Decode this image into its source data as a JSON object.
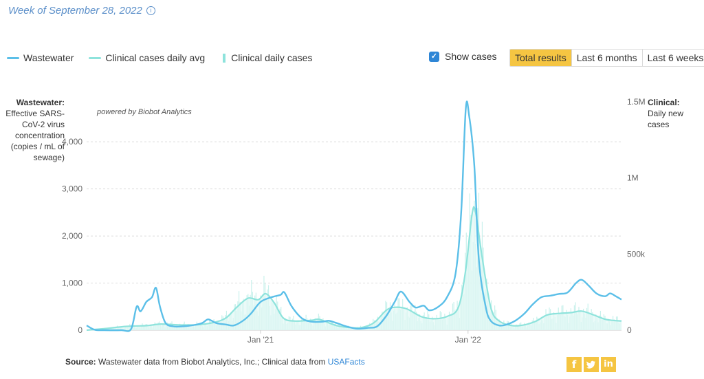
{
  "header": {
    "week_label": "Week of September 28, 2022",
    "info_icon": "info-circle-icon"
  },
  "legend": {
    "wastewater": "Wastewater",
    "clinical_avg": "Clinical cases daily avg",
    "clinical_daily": "Clinical daily cases"
  },
  "controls": {
    "show_cases_label": "Show cases",
    "show_cases_checked": true,
    "range_buttons": [
      "Total results",
      "Last 6 months",
      "Last 6 weeks"
    ],
    "active_range": "Total results"
  },
  "colors": {
    "wastewater": "#5bbfe8",
    "clinical": "#8ee3dc",
    "accent": "#f5c542",
    "link": "#2e86d6"
  },
  "chart_data": {
    "type": "line",
    "title": "",
    "watermark": "powered by Biobot Analytics",
    "left_axis": {
      "title_bold": "Wastewater:",
      "title_rest": "Effective SARS-CoV-2 virus concentration (copies / mL of sewage)",
      "ticks": [
        0,
        1000,
        2000,
        3000,
        4000
      ],
      "tick_labels": [
        "0",
        "1,000",
        "2,000",
        "3,000",
        "4,000"
      ],
      "range": [
        0,
        4850
      ]
    },
    "right_axis": {
      "title_bold": "Clinical:",
      "title_rest": "Daily new cases",
      "ticks": [
        0,
        500000,
        1000000,
        1500000
      ],
      "tick_labels": [
        "0",
        "500k",
        "1M",
        "1.5M"
      ],
      "range": [
        0,
        1500000
      ]
    },
    "x_axis": {
      "ticks": [
        "2021-01-01",
        "2022-01-01"
      ],
      "tick_labels": [
        "Jan '21",
        "Jan '22"
      ],
      "range": [
        "2020-03-01",
        "2022-09-28"
      ]
    },
    "series": [
      {
        "name": "Wastewater",
        "axis": "left",
        "points": [
          [
            "2020-03-01",
            100
          ],
          [
            "2020-03-15",
            10
          ],
          [
            "2020-04-01",
            0
          ],
          [
            "2020-05-01",
            0
          ],
          [
            "2020-05-18",
            20
          ],
          [
            "2020-05-28",
            500
          ],
          [
            "2020-06-04",
            400
          ],
          [
            "2020-06-14",
            600
          ],
          [
            "2020-06-24",
            700
          ],
          [
            "2020-07-01",
            900
          ],
          [
            "2020-07-08",
            500
          ],
          [
            "2020-07-18",
            150
          ],
          [
            "2020-08-01",
            80
          ],
          [
            "2020-08-15",
            80
          ],
          [
            "2020-09-01",
            100
          ],
          [
            "2020-09-20",
            150
          ],
          [
            "2020-10-01",
            230
          ],
          [
            "2020-10-15",
            150
          ],
          [
            "2020-11-01",
            120
          ],
          [
            "2020-11-15",
            100
          ],
          [
            "2020-12-01",
            200
          ],
          [
            "2020-12-15",
            350
          ],
          [
            "2021-01-01",
            600
          ],
          [
            "2021-01-20",
            700
          ],
          [
            "2021-02-05",
            750
          ],
          [
            "2021-02-12",
            800
          ],
          [
            "2021-02-25",
            500
          ],
          [
            "2021-03-15",
            250
          ],
          [
            "2021-04-01",
            180
          ],
          [
            "2021-04-20",
            180
          ],
          [
            "2021-05-01",
            200
          ],
          [
            "2021-05-15",
            150
          ],
          [
            "2021-06-01",
            80
          ],
          [
            "2021-06-20",
            30
          ],
          [
            "2021-07-10",
            50
          ],
          [
            "2021-07-25",
            80
          ],
          [
            "2021-08-10",
            300
          ],
          [
            "2021-08-25",
            600
          ],
          [
            "2021-09-05",
            820
          ],
          [
            "2021-09-20",
            600
          ],
          [
            "2021-10-01",
            480
          ],
          [
            "2021-10-15",
            520
          ],
          [
            "2021-10-25",
            420
          ],
          [
            "2021-11-10",
            500
          ],
          [
            "2021-11-25",
            700
          ],
          [
            "2021-12-10",
            1200
          ],
          [
            "2021-12-20",
            2500
          ],
          [
            "2021-12-28",
            4700
          ],
          [
            "2022-01-03",
            4550
          ],
          [
            "2022-01-12",
            3500
          ],
          [
            "2022-01-20",
            1500
          ],
          [
            "2022-02-01",
            500
          ],
          [
            "2022-02-10",
            200
          ],
          [
            "2022-02-25",
            100
          ],
          [
            "2022-03-10",
            120
          ],
          [
            "2022-03-25",
            200
          ],
          [
            "2022-04-10",
            350
          ],
          [
            "2022-04-25",
            550
          ],
          [
            "2022-05-10",
            700
          ],
          [
            "2022-05-25",
            730
          ],
          [
            "2022-06-10",
            770
          ],
          [
            "2022-06-25",
            800
          ],
          [
            "2022-07-10",
            1000
          ],
          [
            "2022-07-20",
            1070
          ],
          [
            "2022-08-01",
            950
          ],
          [
            "2022-08-15",
            780
          ],
          [
            "2022-08-30",
            720
          ],
          [
            "2022-09-08",
            780
          ],
          [
            "2022-09-18",
            720
          ],
          [
            "2022-09-28",
            650
          ]
        ]
      },
      {
        "name": "Clinical cases daily avg",
        "axis": "right",
        "points": [
          [
            "2020-03-01",
            0
          ],
          [
            "2020-04-01",
            10000
          ],
          [
            "2020-05-10",
            25000
          ],
          [
            "2020-06-15",
            30000
          ],
          [
            "2020-07-10",
            40000
          ],
          [
            "2020-08-10",
            35000
          ],
          [
            "2020-09-10",
            35000
          ],
          [
            "2020-10-10",
            50000
          ],
          [
            "2020-11-01",
            80000
          ],
          [
            "2020-11-20",
            150000
          ],
          [
            "2020-12-10",
            210000
          ],
          [
            "2020-12-28",
            200000
          ],
          [
            "2021-01-10",
            240000
          ],
          [
            "2021-01-25",
            180000
          ],
          [
            "2021-02-10",
            80000
          ],
          [
            "2021-03-01",
            60000
          ],
          [
            "2021-04-01",
            65000
          ],
          [
            "2021-04-15",
            70000
          ],
          [
            "2021-05-15",
            30000
          ],
          [
            "2021-06-15",
            15000
          ],
          [
            "2021-07-01",
            20000
          ],
          [
            "2021-07-20",
            50000
          ],
          [
            "2021-08-10",
            130000
          ],
          [
            "2021-08-25",
            150000
          ],
          [
            "2021-09-15",
            140000
          ],
          [
            "2021-10-10",
            90000
          ],
          [
            "2021-11-01",
            75000
          ],
          [
            "2021-11-25",
            90000
          ],
          [
            "2021-12-15",
            150000
          ],
          [
            "2021-12-28",
            400000
          ],
          [
            "2022-01-08",
            760000
          ],
          [
            "2022-01-14",
            780000
          ],
          [
            "2022-01-25",
            500000
          ],
          [
            "2022-02-10",
            150000
          ],
          [
            "2022-02-25",
            60000
          ],
          [
            "2022-03-20",
            30000
          ],
          [
            "2022-04-10",
            35000
          ],
          [
            "2022-05-01",
            60000
          ],
          [
            "2022-05-20",
            100000
          ],
          [
            "2022-06-10",
            110000
          ],
          [
            "2022-07-01",
            115000
          ],
          [
            "2022-07-20",
            125000
          ],
          [
            "2022-08-10",
            100000
          ],
          [
            "2022-09-01",
            70000
          ],
          [
            "2022-09-28",
            60000
          ]
        ]
      },
      {
        "name": "Clinical daily cases",
        "axis": "right",
        "style": "bars",
        "note": "daily bars follow the daily avg with noise"
      }
    ]
  },
  "footer": {
    "source_bold": "Source:",
    "source_text": " Wastewater data from Biobot Analytics, Inc.; Clinical data from ",
    "source_link": "USAFacts"
  },
  "social": {
    "facebook": "f",
    "twitter": "t",
    "linkedin": "in"
  }
}
